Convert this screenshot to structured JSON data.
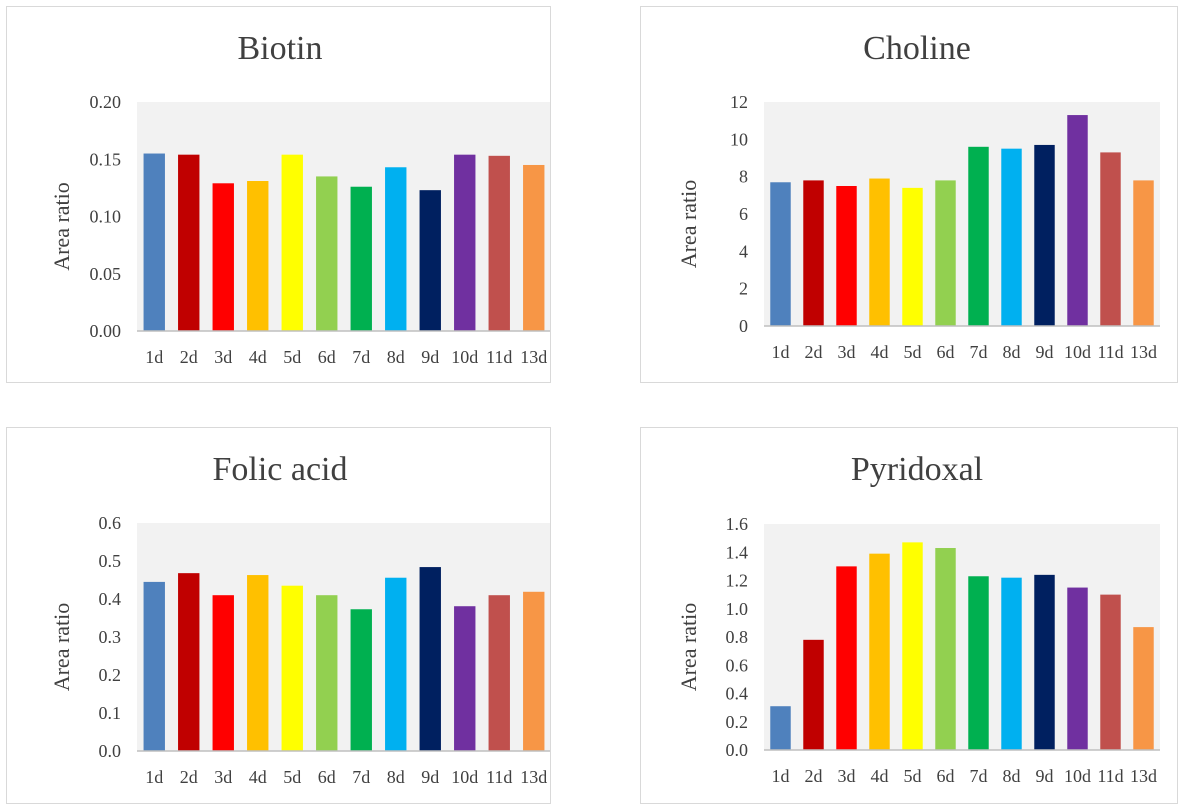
{
  "chart_data": [
    {
      "type": "bar",
      "title": "Biotin",
      "ylabel": "Area ratio",
      "xlabel": "",
      "categories": [
        "1d",
        "2d",
        "3d",
        "4d",
        "5d",
        "6d",
        "7d",
        "8d",
        "9d",
        "10d",
        "11d",
        "13d"
      ],
      "values": [
        0.155,
        0.154,
        0.129,
        0.131,
        0.154,
        0.135,
        0.126,
        0.143,
        0.123,
        0.154,
        0.153,
        0.145
      ],
      "ylim": [
        0,
        0.2
      ],
      "yticks": [
        "0.00",
        "0.05",
        "0.10",
        "0.15",
        "0.20"
      ],
      "grid": false,
      "legend": "none"
    },
    {
      "type": "bar",
      "title": "Choline",
      "ylabel": "Area ratio",
      "xlabel": "",
      "categories": [
        "1d",
        "2d",
        "3d",
        "4d",
        "5d",
        "6d",
        "7d",
        "8d",
        "9d",
        "10d",
        "11d",
        "13d"
      ],
      "values": [
        7.7,
        7.8,
        7.5,
        7.9,
        7.4,
        7.8,
        9.6,
        9.5,
        9.7,
        11.3,
        9.3,
        7.8
      ],
      "ylim": [
        0,
        12
      ],
      "yticks": [
        "0",
        "2",
        "4",
        "6",
        "8",
        "10",
        "12"
      ],
      "grid": false,
      "legend": "none"
    },
    {
      "type": "bar",
      "title": "Folic acid",
      "ylabel": "Area ratio",
      "xlabel": "",
      "categories": [
        "1d",
        "2d",
        "3d",
        "4d",
        "5d",
        "6d",
        "7d",
        "8d",
        "9d",
        "10d",
        "11d",
        "13d"
      ],
      "values": [
        0.445,
        0.468,
        0.41,
        0.463,
        0.435,
        0.41,
        0.373,
        0.456,
        0.484,
        0.381,
        0.41,
        0.419
      ],
      "ylim": [
        0,
        0.6
      ],
      "yticks": [
        "0.0",
        "0.1",
        "0.2",
        "0.3",
        "0.4",
        "0.5",
        "0.6"
      ],
      "grid": false,
      "legend": "none"
    },
    {
      "type": "bar",
      "title": "Pyridoxal",
      "ylabel": "Area ratio",
      "xlabel": "",
      "categories": [
        "1d",
        "2d",
        "3d",
        "4d",
        "5d",
        "6d",
        "7d",
        "8d",
        "9d",
        "10d",
        "11d",
        "13d"
      ],
      "values": [
        0.31,
        0.78,
        1.3,
        1.39,
        1.47,
        1.43,
        1.23,
        1.22,
        1.24,
        1.15,
        1.1,
        0.87
      ],
      "ylim": [
        0,
        1.6
      ],
      "yticks": [
        "0.0",
        "0.2",
        "0.4",
        "0.6",
        "0.8",
        "1.0",
        "1.2",
        "1.4",
        "1.6"
      ],
      "grid": false,
      "legend": "none"
    }
  ],
  "colors": {
    "bars": [
      "#4f81bd",
      "#c00000",
      "#ff0000",
      "#ffc000",
      "#ffff00",
      "#92d050",
      "#00b050",
      "#00b0f0",
      "#002060",
      "#7030a0",
      "#c0504d",
      "#f79646"
    ],
    "plot_area": "#f2f2f2",
    "axis": "#bfbfbf",
    "text": "#404040"
  }
}
